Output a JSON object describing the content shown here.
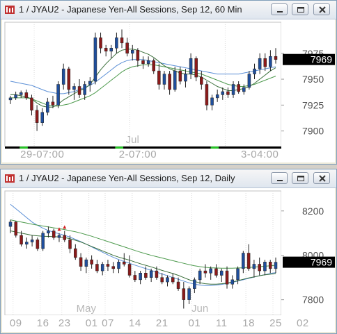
{
  "colors": {
    "up": "#1f4e9c",
    "down": "#8b1a1a",
    "ma_fast": "#3a6f3a",
    "ma_mid": "#4d9a4d",
    "ma_slow": "#5b8fd6",
    "price_tag_bg": "#000000",
    "price_tag_fg": "#ffffff",
    "alert": "#d12020"
  },
  "icons": {
    "app": "chart-app-icon",
    "minimize": "minimize-icon",
    "maximize": "maximize-icon",
    "close": "close-icon"
  },
  "windows": [
    {
      "title": "1 / JYAU2 - Japanese Yen-All Sessions, Sep 12, 60 Min",
      "chart_data": {
        "type": "candlestick",
        "ylim": [
          7885,
          8005
        ],
        "y_ticks": [
          "7975",
          "7950",
          "7925",
          "7900"
        ],
        "y_tick_values": [
          7975,
          7950,
          7925,
          7900
        ],
        "last_price": "7969",
        "last_price_value": 7969,
        "x_labels": [
          "29-07:00",
          "2-07:00",
          "3-04:00"
        ],
        "x_label_bars": [
          6,
          24,
          47
        ],
        "month_label": "Jul",
        "month_label_bar": 23,
        "session_marker_bars": [
          [
            2,
            3
          ],
          [
            20,
            21
          ],
          [
            38,
            39
          ]
        ],
        "separator_bars": [
          5,
          23,
          41
        ],
        "candles": [
          [
            7930,
            7934,
            7926,
            7932
          ],
          [
            7932,
            7938,
            7930,
            7935
          ],
          [
            7935,
            7939,
            7932,
            7937
          ],
          [
            7937,
            7940,
            7930,
            7932
          ],
          [
            7932,
            7935,
            7915,
            7920
          ],
          [
            7920,
            7925,
            7900,
            7908
          ],
          [
            7908,
            7922,
            7905,
            7918
          ],
          [
            7918,
            7932,
            7915,
            7928
          ],
          [
            7928,
            7934,
            7922,
            7925
          ],
          [
            7925,
            7948,
            7922,
            7945
          ],
          [
            7945,
            7965,
            7940,
            7960
          ],
          [
            7960,
            7962,
            7935,
            7940
          ],
          [
            7940,
            7946,
            7930,
            7943
          ],
          [
            7943,
            7950,
            7932,
            7935
          ],
          [
            7935,
            7948,
            7930,
            7945
          ],
          [
            7945,
            7952,
            7938,
            7948
          ],
          [
            7948,
            7995,
            7945,
            7990
          ],
          [
            7990,
            7995,
            7975,
            7980
          ],
          [
            7980,
            7983,
            7972,
            7977
          ],
          [
            7977,
            7983,
            7970,
            7980
          ],
          [
            7980,
            7995,
            7975,
            7990
          ],
          [
            7990,
            7998,
            7980,
            7985
          ],
          [
            7985,
            7990,
            7972,
            7975
          ],
          [
            7975,
            7983,
            7968,
            7978
          ],
          [
            7978,
            7980,
            7962,
            7968
          ],
          [
            7968,
            7972,
            7960,
            7965
          ],
          [
            7965,
            7972,
            7962,
            7968
          ],
          [
            7968,
            7970,
            7955,
            7958
          ],
          [
            7958,
            7965,
            7940,
            7945
          ],
          [
            7945,
            7958,
            7940,
            7955
          ],
          [
            7955,
            7958,
            7935,
            7940
          ],
          [
            7940,
            7962,
            7938,
            7958
          ],
          [
            7958,
            7962,
            7945,
            7948
          ],
          [
            7948,
            7960,
            7942,
            7955
          ],
          [
            7955,
            7975,
            7950,
            7970
          ],
          [
            7970,
            7972,
            7948,
            7952
          ],
          [
            7952,
            7958,
            7940,
            7945
          ],
          [
            7945,
            7948,
            7920,
            7925
          ],
          [
            7925,
            7935,
            7920,
            7932
          ],
          [
            7932,
            7940,
            7928,
            7935
          ],
          [
            7935,
            7942,
            7930,
            7938
          ],
          [
            7938,
            7942,
            7932,
            7935
          ],
          [
            7935,
            7948,
            7932,
            7945
          ],
          [
            7945,
            7948,
            7936,
            7938
          ],
          [
            7938,
            7945,
            7935,
            7942
          ],
          [
            7942,
            7958,
            7940,
            7955
          ],
          [
            7955,
            7965,
            7950,
            7960
          ],
          [
            7960,
            7975,
            7955,
            7970
          ],
          [
            7970,
            7975,
            7958,
            7962
          ],
          [
            7962,
            7978,
            7958,
            7972
          ],
          [
            7972,
            7980,
            7965,
            7969
          ]
        ],
        "ma_fast": [
          7935,
          7935,
          7934,
          7933,
          7931,
          7927,
          7924,
          7923,
          7923,
          7926,
          7930,
          7933,
          7936,
          7939,
          7941,
          7945,
          7952,
          7959,
          7965,
          7970,
          7975,
          7978,
          7979,
          7979,
          7978,
          7976,
          7974,
          7971,
          7967,
          7963,
          7960,
          7958,
          7956,
          7955,
          7955,
          7954,
          7952,
          7949,
          7946,
          7943,
          7941,
          7939,
          7939,
          7940,
          7941,
          7943,
          7946,
          7950,
          7954,
          7958,
          7961
        ],
        "ma_mid": [
          7932,
          7932,
          7932,
          7932,
          7931,
          7929,
          7927,
          7925,
          7924,
          7924,
          7925,
          7926,
          7928,
          7930,
          7932,
          7934,
          7937,
          7941,
          7945,
          7949,
          7953,
          7957,
          7960,
          7962,
          7963,
          7964,
          7964,
          7964,
          7963,
          7962,
          7961,
          7960,
          7959,
          7958,
          7957,
          7956,
          7955,
          7953,
          7951,
          7949,
          7947,
          7945,
          7944,
          7943,
          7943,
          7944,
          7945,
          7947,
          7949,
          7951,
          7953
        ],
        "ma_slow": [
          7948,
          7947,
          7946,
          7945,
          7944,
          7942,
          7940,
          7938,
          7937,
          7936,
          7936,
          7937,
          7938,
          7940,
          7942,
          7944,
          7947,
          7951,
          7955,
          7959,
          7963,
          7966,
          7968,
          7969,
          7969,
          7969,
          7968,
          7967,
          7966,
          7965,
          7964,
          7963,
          7962,
          7961,
          7960,
          7959,
          7958,
          7957,
          7956,
          7955,
          7955,
          7955,
          7955,
          7955,
          7956,
          7957,
          7958,
          7959,
          7960,
          7961,
          7962
        ]
      }
    },
    {
      "title": "1 / JYAU2 - Japanese Yen-All Sessions, Sep 12, Daily",
      "chart_data": {
        "type": "candlestick",
        "ylim": [
          7730,
          8290
        ],
        "y_ticks": [
          "8200",
          "8000",
          "7800"
        ],
        "y_tick_values": [
          8200,
          8000,
          7800
        ],
        "last_price": "7969",
        "last_price_value": 7969,
        "x_labels": [
          "09",
          "16",
          "23",
          "01",
          "07",
          "14",
          "21",
          "01",
          "11",
          "18",
          "25",
          "02"
        ],
        "x_label_bars": [
          1,
          6,
          10,
          15,
          18,
          23,
          28,
          34,
          39,
          44,
          49,
          54
        ],
        "month_labels": [
          "May",
          "Jun"
        ],
        "month_label_bars": [
          14,
          35
        ],
        "separator_bars": [
          1,
          6,
          10,
          15,
          18,
          23,
          28,
          34,
          39,
          44,
          49,
          54
        ],
        "alert_bars": [
          9,
          10
        ],
        "candles": [
          [
            8130,
            8160,
            8100,
            8150
          ],
          [
            8150,
            8155,
            8080,
            8090
          ],
          [
            8090,
            8110,
            8040,
            8050
          ],
          [
            8050,
            8080,
            8030,
            8060
          ],
          [
            8060,
            8090,
            8040,
            8070
          ],
          [
            8070,
            8080,
            8020,
            8030
          ],
          [
            8030,
            8110,
            8020,
            8100
          ],
          [
            8100,
            8130,
            8080,
            8110
          ],
          [
            8110,
            8120,
            8070,
            8080
          ],
          [
            8080,
            8100,
            8060,
            8090
          ],
          [
            8090,
            8110,
            8060,
            8070
          ],
          [
            8070,
            8090,
            8010,
            8030
          ],
          [
            8030,
            8050,
            7980,
            7990
          ],
          [
            7990,
            8010,
            7930,
            7950
          ],
          [
            7950,
            7990,
            7920,
            7980
          ],
          [
            7980,
            8000,
            7940,
            7960
          ],
          [
            7960,
            7980,
            7920,
            7930
          ],
          [
            7930,
            7970,
            7910,
            7960
          ],
          [
            7960,
            7980,
            7930,
            7950
          ],
          [
            7950,
            7970,
            7920,
            7940
          ],
          [
            7940,
            7980,
            7920,
            7970
          ],
          [
            7970,
            8010,
            7950,
            7960
          ],
          [
            7960,
            8000,
            7900,
            7910
          ],
          [
            7910,
            7930,
            7880,
            7890
          ],
          [
            7890,
            7930,
            7870,
            7920
          ],
          [
            7920,
            7950,
            7890,
            7900
          ],
          [
            7900,
            7940,
            7880,
            7930
          ],
          [
            7930,
            7950,
            7890,
            7900
          ],
          [
            7900,
            7920,
            7870,
            7880
          ],
          [
            7880,
            7910,
            7860,
            7900
          ],
          [
            7900,
            7920,
            7870,
            7880
          ],
          [
            7880,
            7900,
            7840,
            7850
          ],
          [
            7850,
            7880,
            7760,
            7800
          ],
          [
            7800,
            7860,
            7780,
            7850
          ],
          [
            7850,
            7900,
            7830,
            7890
          ],
          [
            7890,
            7940,
            7870,
            7930
          ],
          [
            7930,
            7960,
            7900,
            7920
          ],
          [
            7920,
            7950,
            7890,
            7940
          ],
          [
            7940,
            7960,
            7900,
            7910
          ],
          [
            7910,
            7940,
            7880,
            7930
          ],
          [
            7930,
            7950,
            7850,
            7870
          ],
          [
            7870,
            7910,
            7850,
            7890
          ],
          [
            7890,
            7950,
            7870,
            7940
          ],
          [
            7940,
            8020,
            7920,
            8010
          ],
          [
            8010,
            8050,
            7930,
            7940
          ],
          [
            7940,
            7980,
            7900,
            7960
          ],
          [
            7960,
            7990,
            7910,
            7930
          ],
          [
            7930,
            7980,
            7910,
            7970
          ],
          [
            7970,
            7980,
            7920,
            7940
          ],
          [
            7940,
            7990,
            7920,
            7969
          ]
        ],
        "ma_fast": [
          8110,
          8105,
          8100,
          8095,
          8090,
          8088,
          8086,
          8085,
          8084,
          8083,
          8080,
          8075,
          8068,
          8060,
          8050,
          8040,
          8030,
          8020,
          8010,
          8000,
          7992,
          7985,
          7978,
          7970,
          7962,
          7955,
          7948,
          7940,
          7932,
          7925,
          7918,
          7910,
          7900,
          7890,
          7882,
          7876,
          7872,
          7870,
          7870,
          7872,
          7875,
          7880,
          7886,
          7892,
          7898,
          7903,
          7908,
          7912,
          7915,
          7918
        ],
        "ma_mid": [
          8160,
          8155,
          8150,
          8145,
          8140,
          8136,
          8132,
          8128,
          8124,
          8120,
          8116,
          8111,
          8106,
          8100,
          8093,
          8086,
          8078,
          8070,
          8062,
          8054,
          8046,
          8038,
          8030,
          8022,
          8014,
          8007,
          8000,
          7994,
          7988,
          7982,
          7976,
          7970,
          7964,
          7958,
          7953,
          7949,
          7946,
          7944,
          7943,
          7942,
          7942,
          7942,
          7943,
          7944,
          7945,
          7947,
          7949,
          7951,
          7953,
          7955
        ],
        "ma_slow": [
          8230,
          8210,
          8190,
          8170,
          8150,
          8135,
          8122,
          8112,
          8104,
          8097,
          8090,
          8082,
          8072,
          8062,
          8050,
          8038,
          8026,
          8014,
          8002,
          7991,
          7981,
          7972,
          7964,
          7956,
          7948,
          7940,
          7932,
          7924,
          7916,
          7908,
          7900,
          7892,
          7884,
          7876,
          7870,
          7866,
          7864,
          7864,
          7866,
          7869,
          7873,
          7878,
          7884,
          7890,
          7896,
          7902,
          7908,
          7913,
          7918,
          7922
        ]
      }
    }
  ]
}
